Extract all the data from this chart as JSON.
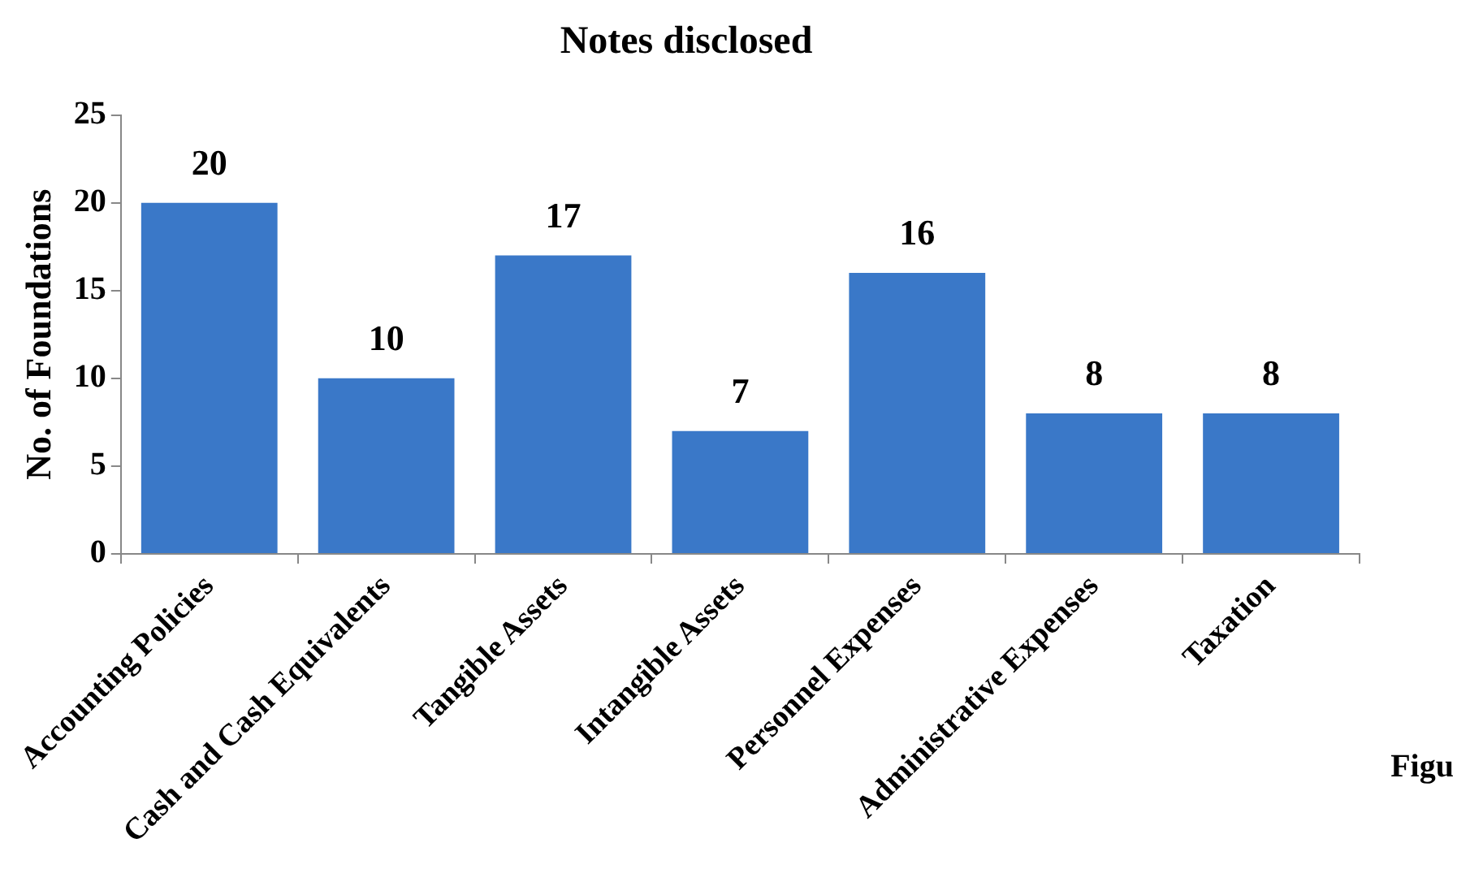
{
  "chart_data": {
    "type": "bar",
    "title": "Notes disclosed",
    "ylabel": "No. of Foundations",
    "categories": [
      "Accounting Policies",
      "Cash and Cash Equivalents",
      "Tangible Assets",
      "Intangible Assets",
      "Personnel Expenses",
      "Administrative Expenses",
      "Taxation"
    ],
    "values": [
      20,
      10,
      17,
      7,
      16,
      8,
      8
    ],
    "color": "#3a78c8",
    "ylim": [
      0,
      25
    ],
    "yticks": [
      0,
      5,
      10,
      15,
      20,
      25
    ],
    "grid": false,
    "legend": false,
    "data_labels": true,
    "annotations": [
      "Figu"
    ]
  }
}
